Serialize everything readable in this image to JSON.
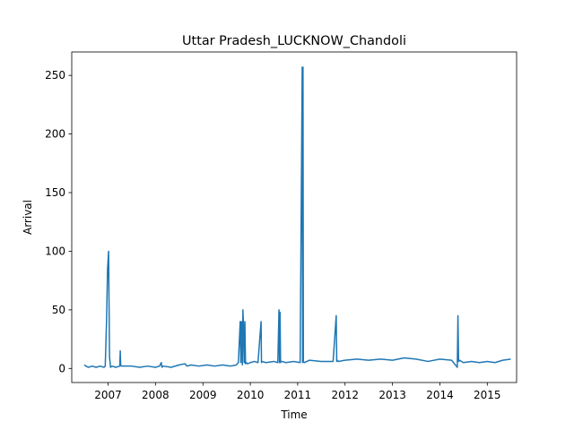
{
  "chart_data": {
    "type": "line",
    "title": "Uttar Pradesh_LUCKNOW_Chandoli",
    "xlabel": "Time",
    "ylabel": "Arrival",
    "x_ticks": [
      "2007",
      "2008",
      "2009",
      "2010",
      "2011",
      "2012",
      "2013",
      "2014",
      "2015"
    ],
    "y_ticks": [
      "0",
      "50",
      "100",
      "150",
      "200",
      "250"
    ],
    "xlim": [
      "2006-03-27",
      "2015-08-15"
    ],
    "ylim": [
      -12,
      270
    ],
    "grid": false,
    "colors": {
      "series": "#1f77b4",
      "axes": "#000000",
      "background": "#ffffff"
    },
    "series": [
      {
        "x": [
          "2006-07-01",
          "2006-07-15",
          "2006-08-01",
          "2006-09-01",
          "2006-10-01",
          "2006-11-01",
          "2006-12-01",
          "2006-12-10",
          "2006-12-20",
          "2006-12-28",
          "2007-01-05",
          "2007-01-08",
          "2007-01-12",
          "2007-01-20",
          "2007-02-01",
          "2007-03-01",
          "2007-04-01",
          "2007-04-05",
          "2007-04-08",
          "2007-04-12",
          "2007-05-01",
          "2007-07-01",
          "2007-09-01",
          "2007-11-01",
          "2008-01-01",
          "2008-02-01",
          "2008-02-15",
          "2008-02-20",
          "2008-03-01",
          "2008-05-01",
          "2008-07-01",
          "2008-08-15",
          "2008-09-01",
          "2008-10-01",
          "2008-12-01",
          "2009-02-01",
          "2009-04-01",
          "2009-06-01",
          "2009-08-01",
          "2009-09-15",
          "2009-10-01",
          "2009-10-15",
          "2009-10-20",
          "2009-10-25",
          "2009-11-01",
          "2009-11-05",
          "2009-11-10",
          "2009-11-15",
          "2009-11-20",
          "2009-11-25",
          "2009-12-01",
          "2009-12-10",
          "2010-01-01",
          "2010-02-01",
          "2010-03-01",
          "2010-03-25",
          "2010-03-28",
          "2010-04-01",
          "2010-05-01",
          "2010-07-01",
          "2010-08-01",
          "2010-08-10",
          "2010-08-14",
          "2010-08-18",
          "2010-08-22",
          "2010-08-26",
          "2010-09-01",
          "2010-10-01",
          "2010-12-01",
          "2011-01-20",
          "2011-02-05",
          "2011-02-08",
          "2011-02-11",
          "2011-02-14",
          "2011-02-20",
          "2011-04-01",
          "2011-07-01",
          "2011-10-01",
          "2011-10-25",
          "2011-10-29",
          "2011-11-02",
          "2011-11-10",
          "2012-01-01",
          "2012-04-01",
          "2012-07-01",
          "2012-10-01",
          "2013-01-01",
          "2013-04-01",
          "2013-07-01",
          "2013-10-01",
          "2014-01-01",
          "2014-04-01",
          "2014-05-15",
          "2014-05-20",
          "2014-05-25",
          "2014-06-01",
          "2014-07-01",
          "2014-09-01",
          "2014-11-01",
          "2015-01-01",
          "2015-03-01",
          "2015-05-01",
          "2015-07-01"
        ],
        "y": [
          3,
          2,
          1,
          2,
          1,
          2,
          1,
          2,
          40,
          85,
          100,
          60,
          10,
          1,
          2,
          1,
          2,
          15,
          3,
          2,
          2,
          2,
          1,
          2,
          1,
          2,
          5,
          1,
          2,
          1,
          3,
          4,
          2,
          3,
          2,
          3,
          2,
          3,
          2,
          3,
          5,
          40,
          5,
          40,
          3,
          50,
          35,
          5,
          40,
          4,
          5,
          4,
          5,
          6,
          5,
          40,
          5,
          6,
          5,
          6,
          5,
          50,
          5,
          48,
          5,
          6,
          6,
          5,
          6,
          5,
          257,
          5,
          257,
          6,
          5,
          7,
          6,
          6,
          45,
          6,
          7,
          6,
          7,
          8,
          7,
          8,
          7,
          9,
          8,
          6,
          8,
          7,
          1,
          45,
          6,
          7,
          5,
          6,
          5,
          6,
          5,
          7,
          8
        ]
      }
    ]
  }
}
